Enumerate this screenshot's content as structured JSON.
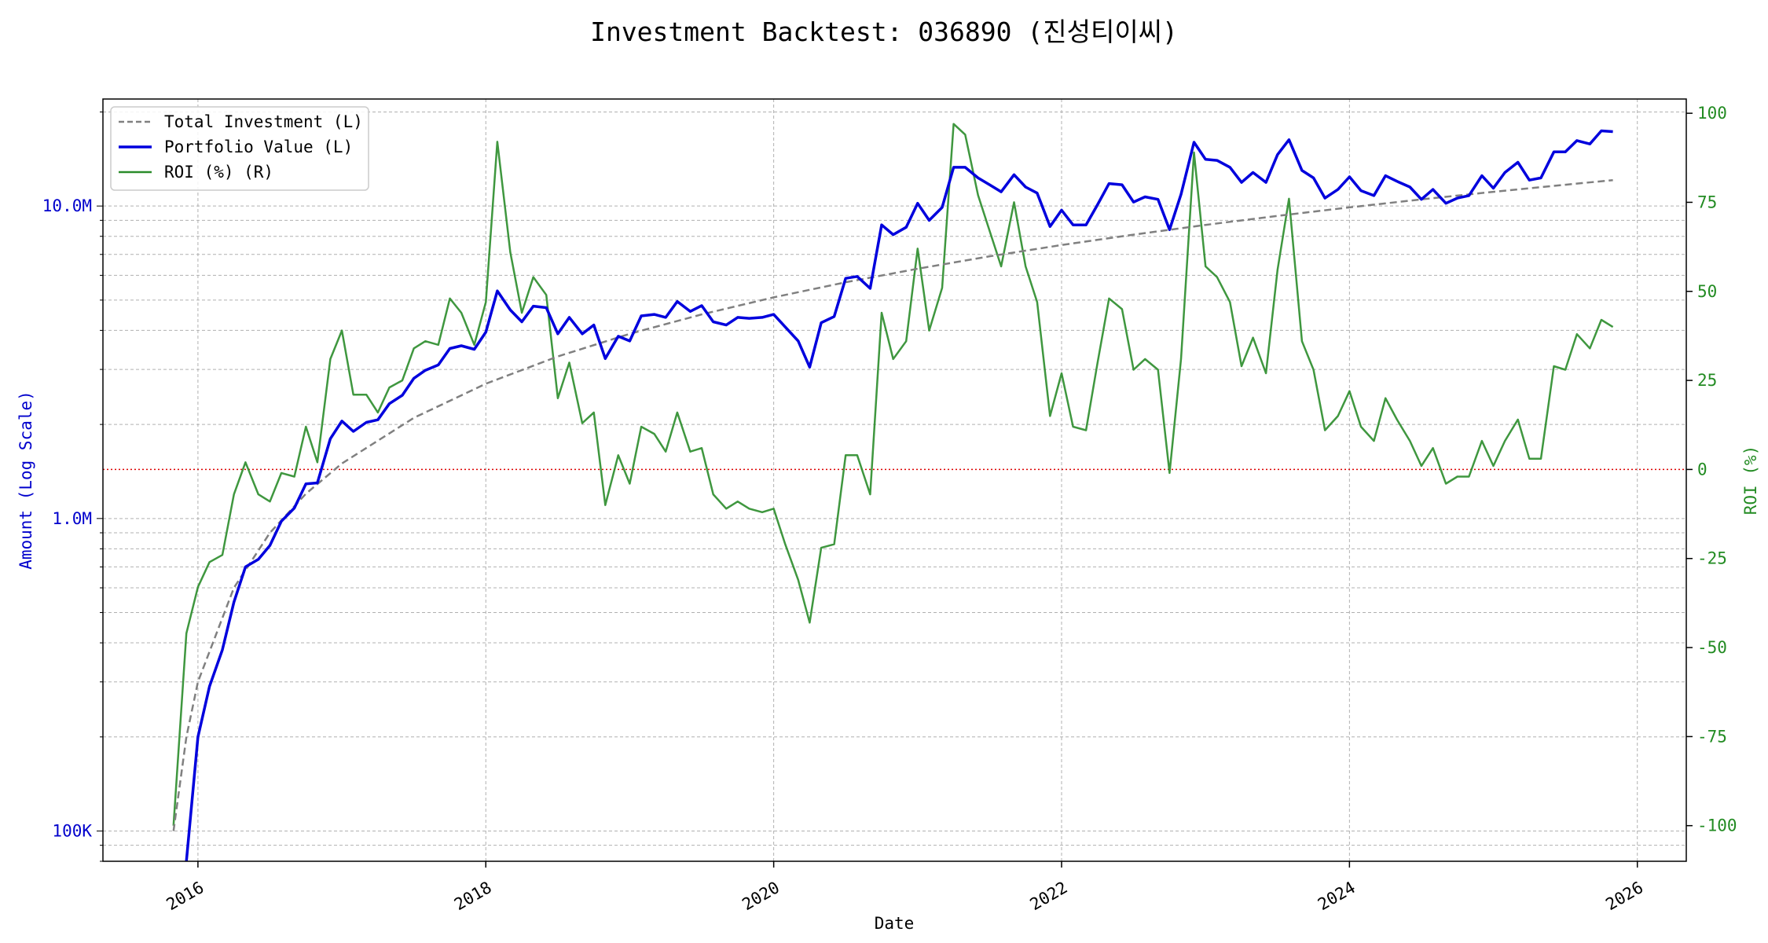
{
  "title": "Investment Backtest: 036890 (진성티이씨)",
  "colors": {
    "total": "#808080",
    "portfolio": "#0000dd",
    "roi": "#2a8c2a",
    "zero_line": "#dd0000",
    "left_axis": "#0000cc",
    "right_axis": "#228b22"
  },
  "chart_data": {
    "type": "line",
    "title": "Investment Backtest: 036890 (진성티이씨)",
    "xlabel": "Date",
    "ylabel_left": "Amount (Log Scale)",
    "ylabel_right": "ROI (%)",
    "y_left_scale": "log",
    "y_left_ticks": [
      {
        "value": 100000,
        "label": "100K"
      },
      {
        "value": 1000000,
        "label": "1.0M"
      },
      {
        "value": 10000000,
        "label": "10.0M"
      }
    ],
    "y_right_ticks": [
      -100,
      -75,
      -50,
      -25,
      0,
      25,
      50,
      75,
      100
    ],
    "x_ticks": [
      "2016",
      "2018",
      "2020",
      "2022",
      "2024",
      "2026"
    ],
    "ylim_left": [
      80000,
      22000000
    ],
    "ylim_right": [
      -110,
      104
    ],
    "xlim": [
      2015.34,
      2026.34
    ],
    "grid": true,
    "legend_position": "upper-left",
    "reference_line": {
      "axis": "right",
      "value": 0,
      "style": "dotted"
    },
    "series": [
      {
        "name": "Total Investment (L)",
        "axis": "left",
        "style": "dashed",
        "x": [
          2015.83,
          2015.92,
          2016.0,
          2016.25,
          2016.5,
          2016.75,
          2017.0,
          2017.5,
          2018.0,
          2018.5,
          2019.0,
          2019.5,
          2020.0,
          2020.5,
          2021.0,
          2021.5,
          2022.0,
          2022.5,
          2023.0,
          2023.5,
          2024.0,
          2024.5,
          2025.0,
          2025.5,
          2025.83
        ],
        "y": [
          100000,
          200000,
          300000,
          600000,
          900000,
          1200000,
          1500000,
          2100000,
          2700000,
          3300000,
          3900000,
          4500000,
          5100000,
          5700000,
          6300000,
          6900000,
          7500000,
          8100000,
          8700000,
          9300000,
          9900000,
          10500000,
          11100000,
          11700000,
          12100000
        ]
      },
      {
        "name": "Portfolio Value (L)",
        "axis": "left",
        "style": "solid",
        "x": [
          2015.92,
          2016.0,
          2016.08,
          2016.17,
          2016.25,
          2016.33,
          2016.42,
          2016.5,
          2016.58,
          2016.67,
          2016.75,
          2016.83,
          2016.92,
          2017.0,
          2017.08,
          2017.17,
          2017.25,
          2017.33,
          2017.42,
          2017.5,
          2017.58,
          2017.67,
          2017.75,
          2017.83,
          2017.92,
          2018.0,
          2018.08,
          2018.17,
          2018.25,
          2018.33,
          2018.42,
          2018.5,
          2018.58,
          2018.67,
          2018.75,
          2018.83,
          2018.92,
          2019.0,
          2019.08,
          2019.17,
          2019.25,
          2019.33,
          2019.42,
          2019.5,
          2019.58,
          2019.67,
          2019.75,
          2019.83,
          2019.92,
          2020.0,
          2020.08,
          2020.17,
          2020.25,
          2020.33,
          2020.42,
          2020.5,
          2020.58,
          2020.67,
          2020.75,
          2020.83,
          2020.92,
          2021.0,
          2021.08,
          2021.17,
          2021.25,
          2021.33,
          2021.42,
          2021.5,
          2021.58,
          2021.67,
          2021.75,
          2021.83,
          2021.92,
          2022.0,
          2022.08,
          2022.17,
          2022.25,
          2022.33,
          2022.42,
          2022.5,
          2022.58,
          2022.67,
          2022.75,
          2022.83,
          2022.92,
          2023.0,
          2023.08,
          2023.17,
          2023.25,
          2023.33,
          2023.42,
          2023.5,
          2023.58,
          2023.67,
          2023.75,
          2023.83,
          2023.92,
          2024.0,
          2024.08,
          2024.17,
          2024.25,
          2024.33,
          2024.42,
          2024.5,
          2024.58,
          2024.67,
          2024.75,
          2024.83,
          2024.92,
          2025.0,
          2025.08,
          2025.17,
          2025.25,
          2025.33,
          2025.42,
          2025.5,
          2025.58,
          2025.67,
          2025.75,
          2025.83
        ],
        "y": [
          100000,
          200000,
          290000,
          380000,
          540000,
          700000,
          740000,
          820000,
          980000,
          1080000,
          1290000,
          1300000,
          1800000,
          2050000,
          1900000,
          2030000,
          2070000,
          2330000,
          2480000,
          2810000,
          2980000,
          3100000,
          3500000,
          3570000,
          3480000,
          3950000,
          5350000,
          4650000,
          4260000,
          4780000,
          4730000,
          3900000,
          4400000,
          3900000,
          4160000,
          3250000,
          3830000,
          3700000,
          4450000,
          4500000,
          4400000,
          4950000,
          4600000,
          4800000,
          4260000,
          4160000,
          4400000,
          4370000,
          4400000,
          4500000,
          4100000,
          3700000,
          3050000,
          4230000,
          4430000,
          5870000,
          5950000,
          5450000,
          8700000,
          8100000,
          8550000,
          10200000,
          9000000,
          9900000,
          13300000,
          13300000,
          12300000,
          11700000,
          11100000,
          12600000,
          11500000,
          11000000,
          8600000,
          9700000,
          8700000,
          8700000,
          10100000,
          11800000,
          11700000,
          10300000,
          10700000,
          10500000,
          8400000,
          10900000,
          16000000,
          14100000,
          14000000,
          13300000,
          11900000,
          12800000,
          11900000,
          14600000,
          16300000,
          13000000,
          12300000,
          10600000,
          11300000,
          12400000,
          11200000,
          10800000,
          12500000,
          12000000,
          11500000,
          10500000,
          11300000,
          10200000,
          10600000,
          10800000,
          12500000,
          11400000,
          12800000,
          13800000,
          12100000,
          12300000,
          14900000,
          14900000,
          16200000,
          15800000,
          17400000,
          17300000
        ]
      },
      {
        "name": "ROI (%) (R)",
        "axis": "right",
        "style": "solid",
        "x": [
          2015.83,
          2015.92,
          2016.0,
          2016.08,
          2016.17,
          2016.25,
          2016.33,
          2016.42,
          2016.5,
          2016.58,
          2016.67,
          2016.75,
          2016.83,
          2016.92,
          2017.0,
          2017.08,
          2017.17,
          2017.25,
          2017.33,
          2017.42,
          2017.5,
          2017.58,
          2017.67,
          2017.75,
          2017.83,
          2017.92,
          2018.0,
          2018.08,
          2018.17,
          2018.25,
          2018.33,
          2018.42,
          2018.5,
          2018.58,
          2018.67,
          2018.75,
          2018.83,
          2018.92,
          2019.0,
          2019.08,
          2019.17,
          2019.25,
          2019.33,
          2019.42,
          2019.5,
          2019.58,
          2019.67,
          2019.75,
          2019.83,
          2019.92,
          2020.0,
          2020.08,
          2020.17,
          2020.25,
          2020.33,
          2020.42,
          2020.5,
          2020.58,
          2020.67,
          2020.75,
          2020.83,
          2020.92,
          2021.0,
          2021.08,
          2021.17,
          2021.25,
          2021.33,
          2021.42,
          2021.5,
          2021.58,
          2021.67,
          2021.75,
          2021.83,
          2021.92,
          2022.0,
          2022.08,
          2022.17,
          2022.25,
          2022.33,
          2022.42,
          2022.5,
          2022.58,
          2022.67,
          2022.75,
          2022.83,
          2022.92,
          2023.0,
          2023.08,
          2023.17,
          2023.25,
          2023.33,
          2023.42,
          2023.5,
          2023.58,
          2023.67,
          2023.75,
          2023.83,
          2023.92,
          2024.0,
          2024.08,
          2024.17,
          2024.25,
          2024.33,
          2024.42,
          2024.5,
          2024.58,
          2024.67,
          2024.75,
          2024.83,
          2024.92,
          2025.0,
          2025.08,
          2025.17,
          2025.25,
          2025.33,
          2025.42,
          2025.5,
          2025.58,
          2025.67,
          2025.75,
          2025.83
        ],
        "y": [
          -100,
          -46,
          -33,
          -26,
          -24,
          -7,
          2,
          -7,
          -9,
          -1,
          -2,
          12,
          2,
          31,
          39,
          21,
          21,
          16,
          23,
          25,
          34,
          36,
          35,
          48,
          44,
          35,
          47,
          92,
          61,
          44,
          54,
          49,
          20,
          30,
          13,
          16,
          -10,
          4,
          -4,
          12,
          10,
          5,
          16,
          5,
          6,
          -7,
          -11,
          -9,
          -11,
          -12,
          -11,
          -21,
          -31,
          -43,
          -22,
          -21,
          4,
          4,
          -7,
          44,
          31,
          36,
          62,
          39,
          51,
          97,
          94,
          77,
          67,
          57,
          75,
          57,
          47,
          15,
          27,
          12,
          11,
          30,
          48,
          45,
          28,
          31,
          28,
          -1,
          31,
          89,
          57,
          54,
          47,
          29,
          37,
          27,
          56,
          76,
          36,
          28,
          11,
          15,
          22,
          12,
          8,
          20,
          14,
          8,
          1,
          6,
          -4,
          -2,
          -2,
          8,
          1,
          8,
          14,
          3,
          3,
          29,
          28,
          38,
          34,
          42,
          40
        ]
      }
    ]
  }
}
